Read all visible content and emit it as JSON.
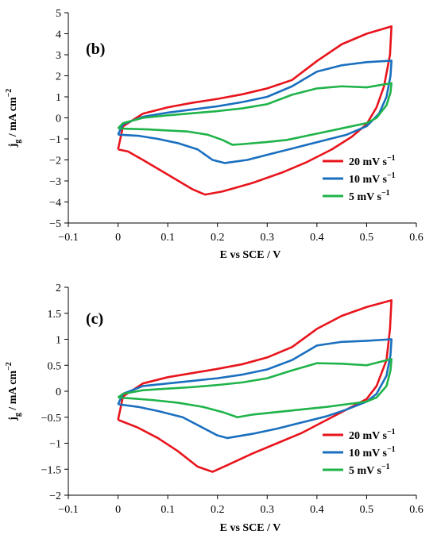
{
  "chart_data": [
    {
      "type": "line",
      "panel_label": "(b)",
      "xlabel": "E vs SCE / V",
      "ylabel_main": "j",
      "ylabel_sub": "g",
      "ylabel_rest": " / mA cm",
      "ylabel_exp": "−2",
      "xlim": [
        -0.1,
        0.6
      ],
      "ylim": [
        -5,
        5
      ],
      "xticks": [
        -0.1,
        0,
        0.1,
        0.2,
        0.3,
        0.4,
        0.5,
        0.6
      ],
      "xtick_labels": [
        "−0.1",
        "0",
        "0.1",
        "0.2",
        "0.3",
        "0.4",
        "0.5",
        "0.6"
      ],
      "yticks": [
        5,
        4,
        3,
        2,
        1,
        0,
        -1,
        -2,
        -3,
        -4,
        -5
      ],
      "ytick_labels": [
        "5",
        "4",
        "3",
        "2",
        "1",
        "0",
        "−1",
        "−2",
        "−3",
        "−4",
        "−5"
      ],
      "grid": false,
      "legend_position": "bottom-right",
      "series": [
        {
          "name": "20 mV s",
          "name_exp": "−1",
          "color": "#e8141c",
          "points": [
            [
              0,
              -1.5
            ],
            [
              0.01,
              -0.4
            ],
            [
              0.05,
              0.2
            ],
            [
              0.1,
              0.5
            ],
            [
              0.15,
              0.72
            ],
            [
              0.2,
              0.9
            ],
            [
              0.25,
              1.12
            ],
            [
              0.3,
              1.4
            ],
            [
              0.35,
              1.8
            ],
            [
              0.4,
              2.7
            ],
            [
              0.45,
              3.5
            ],
            [
              0.5,
              4.0
            ],
            [
              0.55,
              4.35
            ],
            [
              0.547,
              3.0
            ],
            [
              0.535,
              1.5
            ],
            [
              0.52,
              0.5
            ],
            [
              0.5,
              -0.3
            ],
            [
              0.47,
              -0.9
            ],
            [
              0.43,
              -1.5
            ],
            [
              0.38,
              -2.1
            ],
            [
              0.33,
              -2.6
            ],
            [
              0.27,
              -3.1
            ],
            [
              0.21,
              -3.5
            ],
            [
              0.175,
              -3.65
            ],
            [
              0.15,
              -3.4
            ],
            [
              0.1,
              -2.7
            ],
            [
              0.05,
              -2.0
            ],
            [
              0.02,
              -1.6
            ],
            [
              0,
              -1.5
            ]
          ]
        },
        {
          "name": "10 mV s",
          "name_exp": "−1",
          "color": "#1a6fbf",
          "points": [
            [
              0,
              -0.8
            ],
            [
              0.01,
              -0.3
            ],
            [
              0.05,
              0.05
            ],
            [
              0.1,
              0.25
            ],
            [
              0.15,
              0.4
            ],
            [
              0.2,
              0.55
            ],
            [
              0.25,
              0.75
            ],
            [
              0.3,
              1.0
            ],
            [
              0.35,
              1.5
            ],
            [
              0.4,
              2.2
            ],
            [
              0.45,
              2.5
            ],
            [
              0.5,
              2.65
            ],
            [
              0.55,
              2.72
            ],
            [
              0.548,
              2.0
            ],
            [
              0.54,
              1.0
            ],
            [
              0.525,
              0.2
            ],
            [
              0.5,
              -0.4
            ],
            [
              0.46,
              -0.8
            ],
            [
              0.41,
              -1.1
            ],
            [
              0.36,
              -1.4
            ],
            [
              0.31,
              -1.7
            ],
            [
              0.26,
              -2.0
            ],
            [
              0.215,
              -2.15
            ],
            [
              0.19,
              -2.0
            ],
            [
              0.16,
              -1.5
            ],
            [
              0.12,
              -1.2
            ],
            [
              0.08,
              -1.0
            ],
            [
              0.04,
              -0.85
            ],
            [
              0,
              -0.8
            ]
          ]
        },
        {
          "name": "5 mV s",
          "name_exp": "−1",
          "color": "#1fb34a",
          "points": [
            [
              0,
              -0.5
            ],
            [
              0.01,
              -0.25
            ],
            [
              0.05,
              0.0
            ],
            [
              0.1,
              0.12
            ],
            [
              0.15,
              0.22
            ],
            [
              0.2,
              0.32
            ],
            [
              0.25,
              0.45
            ],
            [
              0.3,
              0.65
            ],
            [
              0.35,
              1.1
            ],
            [
              0.4,
              1.4
            ],
            [
              0.45,
              1.5
            ],
            [
              0.5,
              1.45
            ],
            [
              0.55,
              1.65
            ],
            [
              0.548,
              1.2
            ],
            [
              0.54,
              0.6
            ],
            [
              0.52,
              0.0
            ],
            [
              0.5,
              -0.25
            ],
            [
              0.46,
              -0.45
            ],
            [
              0.42,
              -0.65
            ],
            [
              0.38,
              -0.85
            ],
            [
              0.34,
              -1.05
            ],
            [
              0.3,
              -1.15
            ],
            [
              0.25,
              -1.25
            ],
            [
              0.23,
              -1.28
            ],
            [
              0.21,
              -1.05
            ],
            [
              0.18,
              -0.8
            ],
            [
              0.14,
              -0.65
            ],
            [
              0.1,
              -0.6
            ],
            [
              0.06,
              -0.55
            ],
            [
              0.02,
              -0.52
            ],
            [
              0,
              -0.5
            ]
          ]
        }
      ]
    },
    {
      "type": "line",
      "panel_label": "(c)",
      "xlabel": "E vs SCE / V",
      "ylabel_main": "j",
      "ylabel_sub": "g",
      "ylabel_rest": " / mA cm",
      "ylabel_exp": "−2",
      "xlim": [
        -0.1,
        0.6
      ],
      "ylim": [
        -2,
        2
      ],
      "xticks": [
        -0.1,
        0,
        0.1,
        0.2,
        0.3,
        0.4,
        0.5,
        0.6
      ],
      "xtick_labels": [
        "−0.1",
        "0",
        "0.1",
        "0.2",
        "0.3",
        "0.4",
        "0.5",
        "0.6"
      ],
      "yticks": [
        2,
        1.5,
        1,
        0.5,
        0,
        -0.5,
        -1,
        -1.5,
        -2
      ],
      "ytick_labels": [
        "2",
        "1.5",
        "1",
        "0.5",
        "0",
        "−0.5",
        "−1",
        "−1.5",
        "−2"
      ],
      "grid": false,
      "legend_position": "bottom-right",
      "series": [
        {
          "name": "20 mV s",
          "name_exp": "−1",
          "color": "#e8141c",
          "points": [
            [
              0,
              -0.55
            ],
            [
              0.01,
              -0.1
            ],
            [
              0.05,
              0.15
            ],
            [
              0.1,
              0.27
            ],
            [
              0.15,
              0.35
            ],
            [
              0.2,
              0.43
            ],
            [
              0.25,
              0.52
            ],
            [
              0.3,
              0.65
            ],
            [
              0.35,
              0.85
            ],
            [
              0.4,
              1.2
            ],
            [
              0.45,
              1.45
            ],
            [
              0.5,
              1.62
            ],
            [
              0.55,
              1.75
            ],
            [
              0.547,
              1.2
            ],
            [
              0.54,
              0.6
            ],
            [
              0.52,
              0.1
            ],
            [
              0.5,
              -0.15
            ],
            [
              0.46,
              -0.35
            ],
            [
              0.42,
              -0.55
            ],
            [
              0.37,
              -0.8
            ],
            [
              0.32,
              -1.0
            ],
            [
              0.27,
              -1.2
            ],
            [
              0.22,
              -1.42
            ],
            [
              0.19,
              -1.55
            ],
            [
              0.16,
              -1.45
            ],
            [
              0.12,
              -1.15
            ],
            [
              0.08,
              -0.9
            ],
            [
              0.04,
              -0.7
            ],
            [
              0,
              -0.55
            ]
          ]
        },
        {
          "name": "10 mV s",
          "name_exp": "−1",
          "color": "#1a6fbf",
          "points": [
            [
              0,
              -0.25
            ],
            [
              0.01,
              -0.05
            ],
            [
              0.05,
              0.1
            ],
            [
              0.1,
              0.15
            ],
            [
              0.15,
              0.2
            ],
            [
              0.2,
              0.25
            ],
            [
              0.25,
              0.32
            ],
            [
              0.3,
              0.42
            ],
            [
              0.35,
              0.6
            ],
            [
              0.4,
              0.88
            ],
            [
              0.45,
              0.95
            ],
            [
              0.5,
              0.97
            ],
            [
              0.55,
              1.0
            ],
            [
              0.548,
              0.7
            ],
            [
              0.54,
              0.3
            ],
            [
              0.52,
              -0.05
            ],
            [
              0.5,
              -0.2
            ],
            [
              0.46,
              -0.35
            ],
            [
              0.42,
              -0.48
            ],
            [
              0.37,
              -0.6
            ],
            [
              0.32,
              -0.72
            ],
            [
              0.27,
              -0.82
            ],
            [
              0.22,
              -0.9
            ],
            [
              0.2,
              -0.85
            ],
            [
              0.17,
              -0.7
            ],
            [
              0.13,
              -0.5
            ],
            [
              0.08,
              -0.38
            ],
            [
              0.04,
              -0.3
            ],
            [
              0,
              -0.25
            ]
          ]
        },
        {
          "name": "5 mV s",
          "name_exp": "−1",
          "color": "#1fb34a",
          "points": [
            [
              0,
              -0.12
            ],
            [
              0.01,
              -0.05
            ],
            [
              0.05,
              0.02
            ],
            [
              0.1,
              0.05
            ],
            [
              0.15,
              0.08
            ],
            [
              0.2,
              0.12
            ],
            [
              0.25,
              0.17
            ],
            [
              0.3,
              0.25
            ],
            [
              0.35,
              0.4
            ],
            [
              0.4,
              0.54
            ],
            [
              0.45,
              0.53
            ],
            [
              0.5,
              0.5
            ],
            [
              0.55,
              0.62
            ],
            [
              0.548,
              0.4
            ],
            [
              0.54,
              0.1
            ],
            [
              0.52,
              -0.12
            ],
            [
              0.5,
              -0.2
            ],
            [
              0.46,
              -0.25
            ],
            [
              0.42,
              -0.3
            ],
            [
              0.37,
              -0.35
            ],
            [
              0.32,
              -0.4
            ],
            [
              0.27,
              -0.45
            ],
            [
              0.24,
              -0.5
            ],
            [
              0.21,
              -0.4
            ],
            [
              0.17,
              -0.3
            ],
            [
              0.12,
              -0.22
            ],
            [
              0.07,
              -0.17
            ],
            [
              0.03,
              -0.14
            ],
            [
              0,
              -0.12
            ]
          ]
        }
      ]
    }
  ]
}
